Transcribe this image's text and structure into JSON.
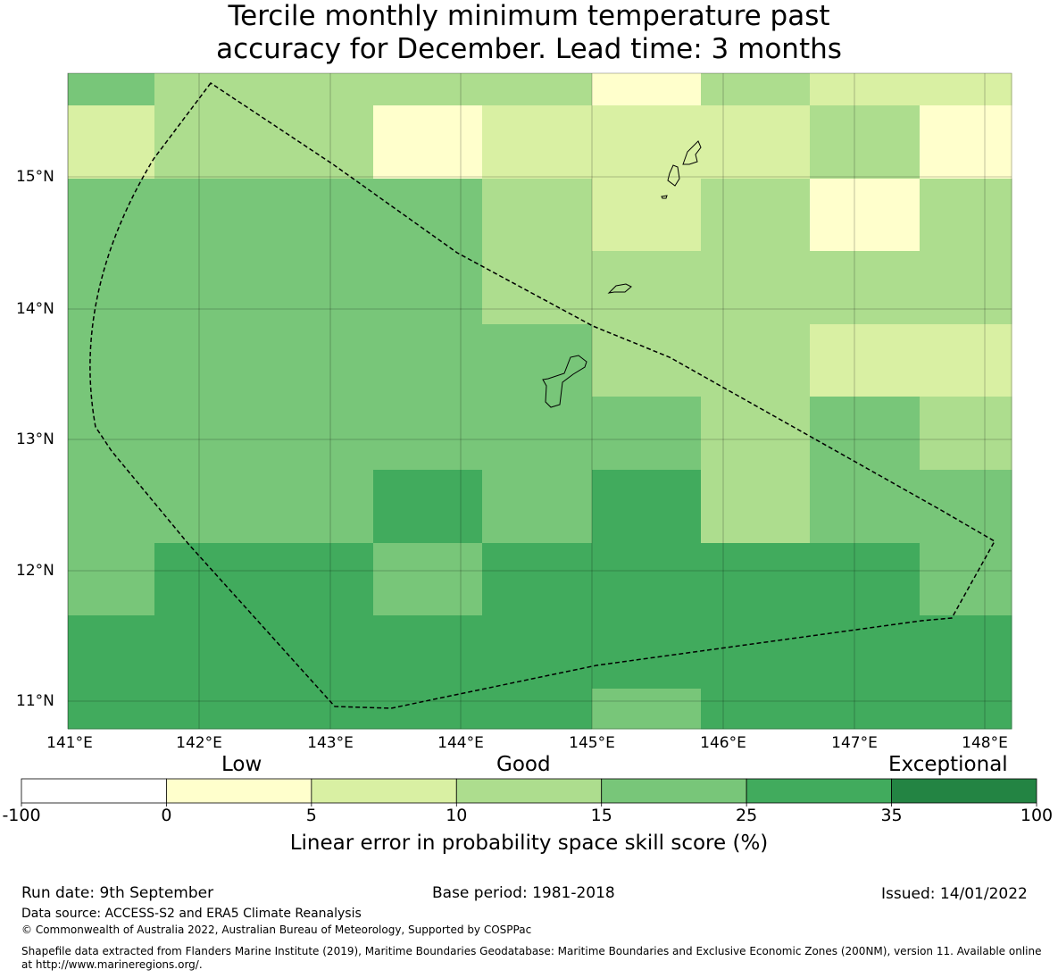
{
  "title_line1": "Tercile monthly minimum temperature past",
  "title_line2": "accuracy for December. Lead time: 3 months",
  "lon_labels": [
    "141°E",
    "142°E",
    "143°E",
    "144°E",
    "145°E",
    "146°E",
    "147°E",
    "148°E"
  ],
  "lat_labels": [
    "15°N",
    "14°N",
    "13°N",
    "12°N",
    "11°N"
  ],
  "colorbar": {
    "category_labels": [
      "Low",
      "Good",
      "Exceptional"
    ],
    "ticks": [
      "-100",
      "0",
      "5",
      "10",
      "15",
      "25",
      "35",
      "100"
    ],
    "colors": [
      "#ffffff",
      "#ffffcc",
      "#d9f0a3",
      "#addd8e",
      "#78c679",
      "#41ab5d",
      "#238443"
    ],
    "title": "Linear error in probability space skill score (%)"
  },
  "grid": {
    "cell_classes_top_to_bottom": [
      [
        4,
        3,
        3,
        3,
        3,
        1,
        3,
        2,
        2
      ],
      [
        2,
        3,
        3,
        1,
        2,
        2,
        2,
        3,
        1
      ],
      [
        4,
        4,
        4,
        4,
        3,
        2,
        3,
        1,
        3
      ],
      [
        4,
        4,
        4,
        4,
        3,
        3,
        3,
        3,
        3
      ],
      [
        4,
        4,
        4,
        4,
        4,
        3,
        3,
        2,
        2
      ],
      [
        4,
        4,
        4,
        4,
        4,
        4,
        3,
        4,
        3
      ],
      [
        4,
        4,
        4,
        5,
        4,
        5,
        3,
        4,
        4
      ],
      [
        4,
        5,
        5,
        4,
        5,
        5,
        5,
        5,
        4
      ],
      [
        5,
        5,
        5,
        5,
        5,
        5,
        5,
        5,
        5
      ],
      [
        5,
        5,
        5,
        5,
        5,
        4,
        5,
        5,
        5
      ]
    ]
  },
  "footer": {
    "run_date": "Run date: 9th September",
    "base_period": "Base period: 1981-2018",
    "issued": "Issued: 14/01/2022",
    "data_source": "Data source: ACCESS-S2 and ERA5 Climate Reanalysis",
    "copyright": "© Commonwealth of Australia 2022, Australian Bureau of Meteorology, Supported by COSPPac",
    "shapefile_line1": "Shapefile data extracted from Flanders Marine Institute (2019), Maritime Boundaries Geodatabase: Maritime Boundaries and Exclusive Economic Zones (200NM), version 11. Available online",
    "shapefile_line2": "at http://www.marineregions.org/."
  }
}
